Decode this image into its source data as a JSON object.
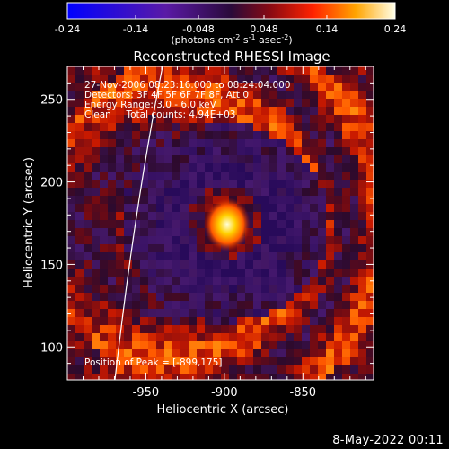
{
  "chart_data": {
    "type": "heatmap",
    "title": "Reconstructed RHESSI Image",
    "xlabel": "Heliocentric X (arcsec)",
    "ylabel": "Heliocentric Y (arcsec)",
    "x_ticks": [
      "-950",
      "-900",
      "-850"
    ],
    "y_ticks": [
      "100",
      "150",
      "200",
      "250"
    ],
    "colorbar": {
      "unit_html": "(photons cm<tspan dy='-4' font-size='8'>-2</tspan><tspan dy='4'> s</tspan><tspan dy='-4' font-size='8'>-1</tspan><tspan dy='4'> asec</tspan><tspan dy='-4' font-size='8'>-2</tspan><tspan dy='4'>)</tspan>",
      "tick_labels": [
        "-0.24",
        "-0.14",
        "-0.048",
        "0.048",
        "0.14",
        "0.24"
      ],
      "range": [
        -0.24,
        0.24
      ]
    },
    "annotations": [
      "27-Nov-2006 08:23:16.000 to 08:24:04.000",
      "Detectors: 3F 4F 5F 6F 7F 8F, Att 0",
      "Energy Range: 3.0 - 6.0 keV",
      "Clean     Total counts: 4.94E+03"
    ],
    "peak_label": "Position of Peak = [-899,175]",
    "xlim": [
      -1000,
      -805
    ],
    "ylim": [
      80,
      270
    ],
    "peak": {
      "x": -899,
      "y": 175
    }
  },
  "footer_date": "8-May-2022 00:11"
}
